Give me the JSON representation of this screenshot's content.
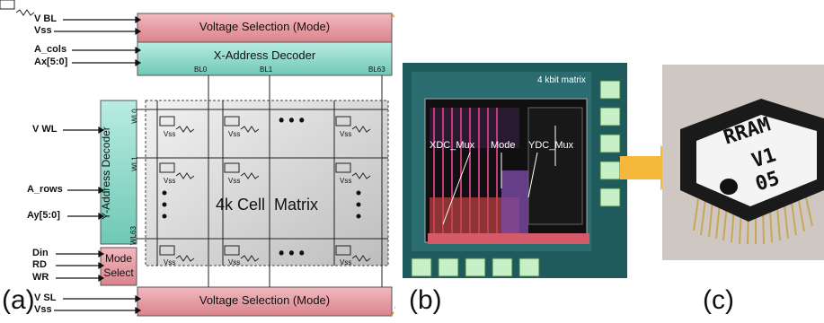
{
  "panel_a": {
    "caption": "(a)",
    "top_inputs": [
      "V BL",
      "Vss",
      "A_cols",
      "Ax[5:0]"
    ],
    "left_inputs": [
      "V WL",
      "A_rows",
      "Ay[5:0]"
    ],
    "mode_inputs": [
      "Din",
      "RD",
      "WR"
    ],
    "bottom_inputs": [
      "V SL",
      "Vss"
    ],
    "voltage_top": "Voltage Selection (Mode)",
    "voltage_bottom": "Voltage Selection (Mode)",
    "x_decoder": "X-Address Decoder",
    "y_decoder": "Y-Address Decoder",
    "mode_select_1": "Mode",
    "mode_select_2": "Select",
    "bitlines": [
      "BL0",
      "BL1",
      "BL63"
    ],
    "wordlines": [
      "WL0",
      "WL1",
      "WL63"
    ],
    "cell_matrix": "4k Cell  Matrix",
    "cell_label": "Vss",
    "ellipsis": "• • •",
    "colors": {
      "pink": "#e89aa2",
      "teal": "#8fd8c9"
    }
  },
  "panel_b": {
    "caption": "(b)",
    "matrix_label": "4 kbit matrix",
    "xdc": "XDC_Mux",
    "mode": "Mode",
    "ydc": "YDC_Mux"
  },
  "panel_c": {
    "caption": "(c)",
    "chip_line1": "RRAM",
    "chip_line2": "V1",
    "chip_line3": "05"
  }
}
